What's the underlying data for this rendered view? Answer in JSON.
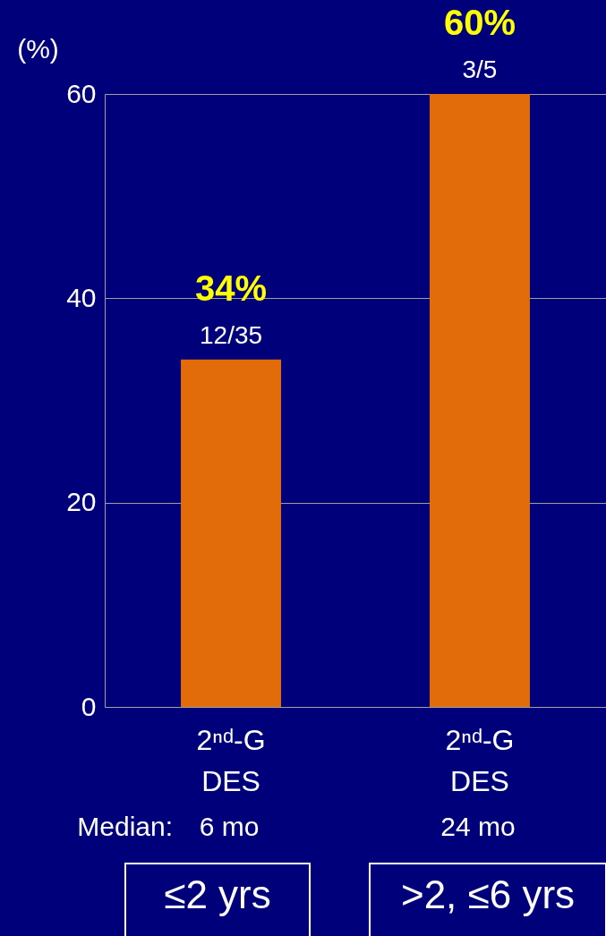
{
  "chart_data": {
    "type": "bar",
    "ylabel": "(%)",
    "categories": [
      "2ⁿᵈ-G\nDES",
      "2ⁿᵈ-G\nDES"
    ],
    "values": [
      34,
      60
    ],
    "color": "#e36c0a",
    "value_labels": [
      "34%",
      "60%"
    ],
    "ylim": [
      0,
      60
    ],
    "yticks": [
      0,
      20,
      40,
      60
    ],
    "grid": "y",
    "annotations": [
      "12/35",
      "3/5",
      "Median:",
      "6 mo",
      "24 mo",
      "≤2 yrs",
      ">2, ≤6 yrs"
    ]
  }
}
